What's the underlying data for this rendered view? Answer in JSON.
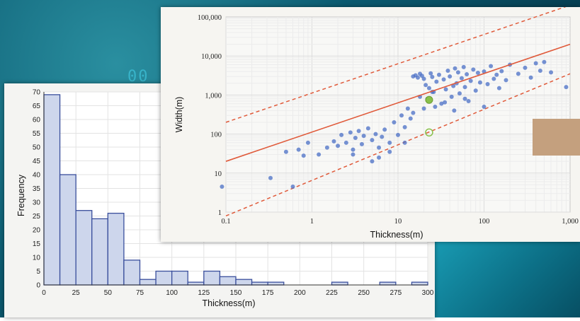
{
  "background": {
    "deco_text": "00"
  },
  "chart_data": [
    {
      "type": "bar",
      "title": "",
      "xlabel": "Thickness(m)",
      "ylabel": "Frequency",
      "bin_width": 12.5,
      "bin_starts": [
        0,
        12.5,
        25,
        37.5,
        50,
        62.5,
        75,
        87.5,
        100,
        112.5,
        125,
        137.5,
        150,
        162.5,
        175,
        187.5,
        200,
        212.5,
        225,
        237.5,
        250,
        262.5,
        275,
        287.5
      ],
      "values": [
        69,
        40,
        27,
        24,
        26,
        9,
        2,
        5,
        5,
        1,
        5,
        3,
        2,
        1,
        1,
        0,
        0,
        0,
        1,
        0,
        0,
        1,
        0,
        1
      ],
      "xlim": [
        0,
        300
      ],
      "ylim": [
        0,
        70
      ],
      "xticks": [
        "0",
        "25",
        "50",
        "75",
        "100",
        "125",
        "150",
        "175",
        "200",
        "225",
        "250",
        "275",
        "300"
      ],
      "yticks": [
        "0",
        "5",
        "10",
        "15",
        "20",
        "25",
        "30",
        "35",
        "40",
        "45",
        "50",
        "55",
        "60",
        "65",
        "70"
      ],
      "grid": true,
      "colors": {
        "bar_fill": "#cdd6ec",
        "bar_edge": "#3a4f9c"
      }
    },
    {
      "type": "scatter",
      "title": "",
      "xlabel": "Thickness(m)",
      "ylabel": "Width(m)",
      "xscale": "log",
      "yscale": "log",
      "xlim": [
        0.1,
        1000
      ],
      "ylim": [
        1,
        100000
      ],
      "xticks": [
        "0.1",
        "1",
        "10",
        "100",
        "1,000"
      ],
      "yticks": [
        "1",
        "10",
        "100",
        "1,000",
        "10,000",
        "100,000"
      ],
      "grid": true,
      "points": [
        [
          0.09,
          4.5
        ],
        [
          0.33,
          7.5
        ],
        [
          0.6,
          4.5
        ],
        [
          0.5,
          35
        ],
        [
          0.7,
          40
        ],
        [
          0.8,
          28
        ],
        [
          0.9,
          60
        ],
        [
          1.2,
          30
        ],
        [
          1.5,
          45
        ],
        [
          1.8,
          65
        ],
        [
          2.0,
          50
        ],
        [
          2.2,
          95
        ],
        [
          2.5,
          60
        ],
        [
          2.8,
          110
        ],
        [
          3.0,
          40
        ],
        [
          3.2,
          80
        ],
        [
          3.5,
          120
        ],
        [
          3.8,
          55
        ],
        [
          4.0,
          90
        ],
        [
          4.5,
          140
        ],
        [
          5.0,
          70
        ],
        [
          5.5,
          100
        ],
        [
          6.0,
          45
        ],
        [
          6.5,
          85
        ],
        [
          7.0,
          130
        ],
        [
          8.0,
          60
        ],
        [
          9.0,
          200
        ],
        [
          10,
          95
        ],
        [
          11,
          300
        ],
        [
          12,
          150
        ],
        [
          13,
          450
        ],
        [
          14,
          250
        ],
        [
          15,
          3000
        ],
        [
          16,
          3200
        ],
        [
          17,
          2800
        ],
        [
          18,
          3500
        ],
        [
          19,
          3100
        ],
        [
          20,
          2600
        ],
        [
          21,
          1800
        ],
        [
          22,
          800
        ],
        [
          23,
          1500
        ],
        [
          24,
          3600
        ],
        [
          25,
          2900
        ],
        [
          26,
          1200
        ],
        [
          27,
          500
        ],
        [
          28,
          2200
        ],
        [
          30,
          3300
        ],
        [
          32,
          600
        ],
        [
          34,
          2500
        ],
        [
          36,
          1400
        ],
        [
          38,
          4200
        ],
        [
          40,
          3000
        ],
        [
          42,
          900
        ],
        [
          44,
          1700
        ],
        [
          46,
          4800
        ],
        [
          48,
          2000
        ],
        [
          50,
          3800
        ],
        [
          52,
          1100
        ],
        [
          55,
          2700
        ],
        [
          58,
          5200
        ],
        [
          60,
          1600
        ],
        [
          63,
          3400
        ],
        [
          66,
          700
        ],
        [
          70,
          2300
        ],
        [
          75,
          4500
        ],
        [
          80,
          1300
        ],
        [
          85,
          3700
        ],
        [
          90,
          2100
        ],
        [
          100,
          4000
        ],
        [
          110,
          1900
        ],
        [
          120,
          5500
        ],
        [
          130,
          2600
        ],
        [
          140,
          3300
        ],
        [
          150,
          1500
        ],
        [
          160,
          4100
        ],
        [
          180,
          2400
        ],
        [
          200,
          6000
        ],
        [
          250,
          3500
        ],
        [
          300,
          5000
        ],
        [
          350,
          2800
        ],
        [
          400,
          6500
        ],
        [
          450,
          4200
        ],
        [
          500,
          7000
        ],
        [
          600,
          3800
        ],
        [
          900,
          1600
        ],
        [
          6,
          25
        ],
        [
          8,
          35
        ],
        [
          5,
          20
        ],
        [
          3,
          30
        ],
        [
          12,
          60
        ],
        [
          15,
          350
        ],
        [
          18,
          900
        ],
        [
          20,
          450
        ],
        [
          25,
          1200
        ],
        [
          35,
          650
        ],
        [
          45,
          400
        ],
        [
          60,
          800
        ],
        [
          100,
          500
        ]
      ],
      "highlight_points": [
        [
          23,
          750
        ],
        [
          23,
          110
        ]
      ],
      "trend_line": {
        "x": [
          0.1,
          1000
        ],
        "y": [
          20,
          20000
        ]
      },
      "bounds": [
        {
          "x": [
            0.1,
            1000
          ],
          "y": [
            200,
            200000
          ]
        },
        {
          "x": [
            0.1,
            1000
          ],
          "y": [
            0.8,
            3500
          ]
        }
      ],
      "colors": {
        "point": "#4a6fc6",
        "line": "#e05a3a",
        "highlight": "#88c04a"
      }
    }
  ],
  "swatch_color": "#c4a07e"
}
